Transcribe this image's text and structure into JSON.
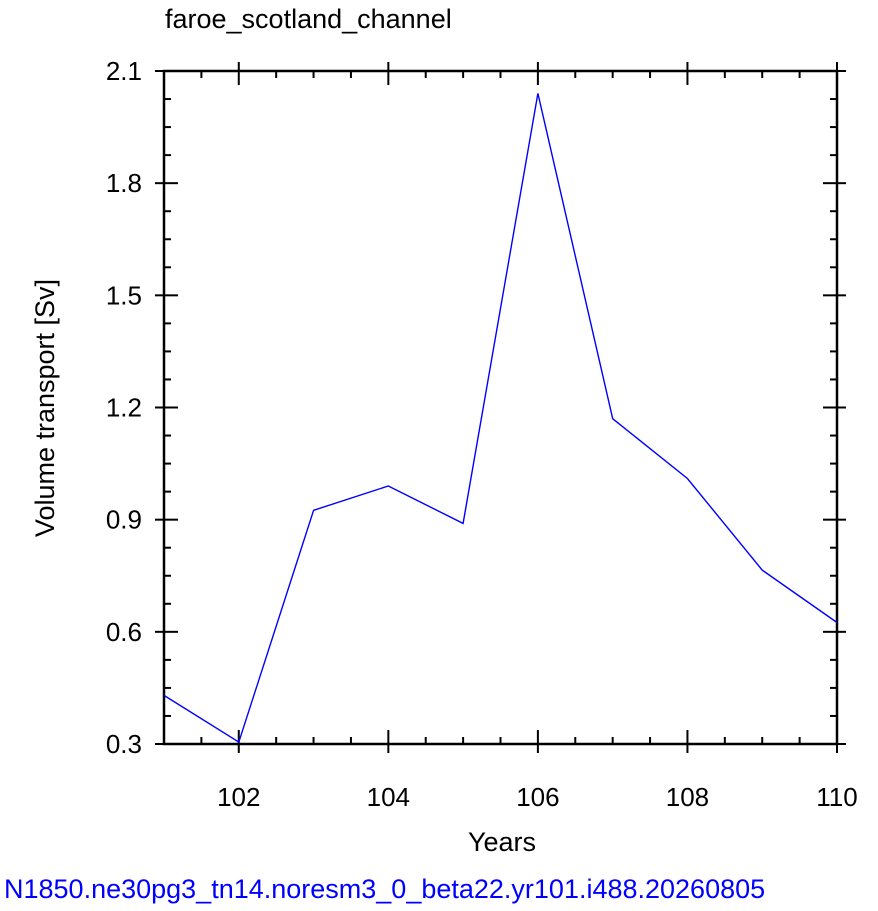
{
  "chart_data": {
    "type": "line",
    "title": "faroe_scotland_channel",
    "xlabel": "Years",
    "ylabel": "Volume transport [Sv]",
    "xlim": [
      101,
      110
    ],
    "ylim": [
      0.3,
      2.1
    ],
    "xticks": [
      102,
      104,
      106,
      108,
      110
    ],
    "xtick_labels": [
      "102",
      "104",
      "106",
      "108",
      "110"
    ],
    "yticks": [
      0.3,
      0.6,
      0.9,
      1.2,
      1.5,
      1.8,
      2.1
    ],
    "ytick_labels": [
      "0.3",
      "0.6",
      "0.9",
      "1.2",
      "1.5",
      "1.8",
      "2.1"
    ],
    "grid": false,
    "series": [
      {
        "color": "#0000ff",
        "x": [
          101,
          102,
          103,
          104,
          105,
          106,
          107,
          108,
          109,
          110
        ],
        "y": [
          0.43,
          0.305,
          0.925,
          0.99,
          0.89,
          2.04,
          1.17,
          1.01,
          0.765,
          0.625
        ]
      }
    ]
  },
  "footer": {
    "text": "N1850.ne30pg3_tn14.noresm3_0_beta22.yr101.i488.20260805",
    "color": "#0000ff"
  }
}
